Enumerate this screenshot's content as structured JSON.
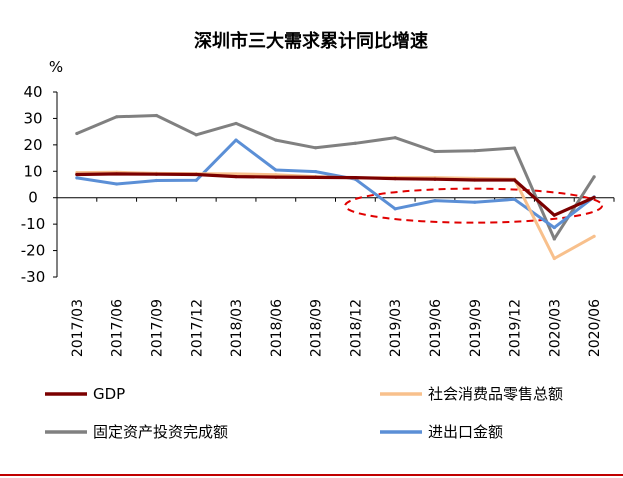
{
  "chart_data": {
    "type": "line",
    "title": "深圳市三大需求累计同比增速",
    "ylabel": "%",
    "xlabel": "",
    "ylim": [
      -30,
      40
    ],
    "yticks": [
      40,
      30,
      20,
      10,
      0,
      -10,
      -20,
      -30
    ],
    "categories": [
      "2017/03",
      "2017/06",
      "2017/09",
      "2017/12",
      "2018/03",
      "2018/06",
      "2018/09",
      "2018/12",
      "2019/03",
      "2019/06",
      "2019/09",
      "2019/12",
      "2020/03",
      "2020/06"
    ],
    "series": [
      {
        "name": "GDP",
        "color": "#7b0000",
        "values": [
          8.8,
          9.0,
          8.9,
          8.8,
          8.0,
          7.8,
          7.7,
          7.6,
          7.2,
          7.0,
          6.7,
          6.7,
          -6.6,
          0.1
        ]
      },
      {
        "name": "社会消费品零售总额",
        "color": "#f8c08c",
        "values": [
          9.5,
          9.6,
          9.2,
          9.1,
          9.0,
          8.7,
          8.0,
          7.5,
          7.6,
          7.6,
          7.3,
          7.0,
          -23.0,
          -14.6
        ]
      },
      {
        "name": "固定资产投资完成额",
        "color": "#808080",
        "values": [
          24.3,
          30.6,
          31.1,
          23.8,
          28.1,
          21.8,
          18.9,
          20.6,
          22.7,
          17.5,
          17.8,
          18.8,
          -15.6,
          7.9
        ]
      },
      {
        "name": "进出口金额",
        "color": "#5b8fd6",
        "values": [
          7.5,
          5.2,
          6.5,
          6.6,
          21.8,
          10.5,
          9.9,
          7.0,
          -4.2,
          -1.1,
          -1.7,
          -0.6,
          -11.3,
          0.3
        ]
      }
    ],
    "annotation": {
      "type": "dashed-ellipse",
      "color": "#e00000",
      "from_category": "2019/03",
      "to_category": "2020/06",
      "y_center": -3
    }
  }
}
